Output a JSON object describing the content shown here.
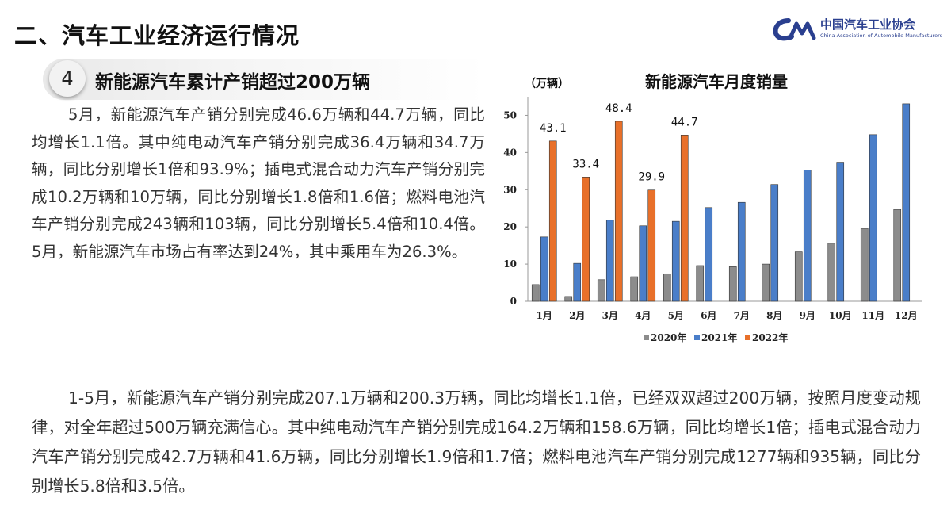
{
  "header": {
    "section_title": "二、汽车工业经济运行情况",
    "logo_cn": "中国汽车工业协会",
    "logo_en": "China Association of Automobile Manufacturers"
  },
  "subsection": {
    "number": "4",
    "title": "新能源汽车累计产销超过200万辆"
  },
  "paragraphs": [
    "5月，新能源汽车产销分别完成46.6万辆和44.7万辆，同比均增长1.1倍。其中纯电动汽车产销分别完成36.4万辆和34.7万辆，同比分别增长1倍和93.9%；插电式混合动力汽车产销分别完成10.2万辆和10万辆，同比分别增长1.8倍和1.6倍；燃料电池汽车产销分别完成243辆和103辆，同比分别增长5.4倍和10.4倍。5月，新能源汽车市场占有率达到24%，其中乘用车为26.3%。",
    "1-5月，新能源汽车产销分别完成207.1万辆和200.3万辆，同比均增长1.1倍，已经双双超过200万辆，按照月度变动规律，对全年超过500万辆充满信心。其中纯电动汽车产销分别完成164.2万辆和158.6万辆，同比均增长1倍；插电式混合动力汽车产销分别完成42.7万辆和41.6万辆，同比分别增长1.9倍和1.7倍；燃料电池汽车产销分别完成1277辆和935辆，同比分别增长5.8倍和3.5倍。"
  ],
  "chart_data": {
    "type": "bar",
    "title": "新能源汽车月度销量",
    "ylabel": "（万辆）",
    "xlabel": "",
    "categories": [
      "1月",
      "2月",
      "3月",
      "4月",
      "5月",
      "6月",
      "7月",
      "8月",
      "9月",
      "10月",
      "11月",
      "12月"
    ],
    "ylim": [
      0,
      55
    ],
    "yticks": [
      0,
      10,
      20,
      30,
      40,
      50
    ],
    "grid": false,
    "legend_position": "bottom",
    "series": [
      {
        "name": "2020年",
        "color": "#8c8c8c",
        "values": [
          4.5,
          1.3,
          5.8,
          6.6,
          7.4,
          9.6,
          9.3,
          10.0,
          13.3,
          15.6,
          19.6,
          24.7
        ]
      },
      {
        "name": "2021年",
        "color": "#4a7ec9",
        "values": [
          17.3,
          10.2,
          21.8,
          20.3,
          21.5,
          25.2,
          26.6,
          31.4,
          35.3,
          37.4,
          44.8,
          53.1
        ]
      },
      {
        "name": "2022年",
        "color": "#e8702a",
        "values": [
          43.1,
          33.4,
          48.4,
          29.9,
          44.7,
          null,
          null,
          null,
          null,
          null,
          null,
          null
        ]
      }
    ],
    "data_labels": {
      "series": "2022年",
      "labels": [
        "43.1",
        "33.4",
        "48.4",
        "29.9",
        "44.7"
      ]
    }
  }
}
